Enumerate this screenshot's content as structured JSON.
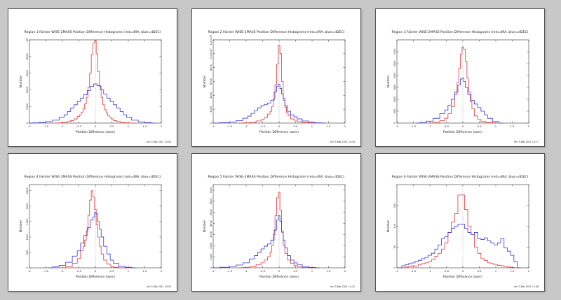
{
  "chart_data": [
    {
      "type": "line",
      "title": "Region 1 Fainter WISE-2MASS Position Difference Histograms (red=dRA, blue=dDEC)",
      "xlabel": "Position Difference (asec)",
      "ylabel": "Number",
      "footer": "tim 3-Mar-2011 10:05",
      "xlim": [
        -2,
        2
      ],
      "ylim": [
        0,
        10000
      ],
      "x_ticks": [
        "-2",
        "-1.5",
        "-1",
        "-0.5",
        "0",
        "0.5",
        "1",
        "1.5",
        "2"
      ],
      "y_ticks": [
        "0",
        "2000",
        "4000",
        "6000",
        "8000",
        "10⁴"
      ],
      "bin_width": 0.05,
      "series": [
        {
          "color": "#e8343a",
          "x": [
            -1.2,
            -1.1,
            -1.0,
            -0.9,
            -0.8,
            -0.7,
            -0.6,
            -0.5,
            -0.45,
            -0.4,
            -0.35,
            -0.3,
            -0.25,
            -0.2,
            -0.15,
            -0.1,
            -0.05,
            0,
            0.05,
            0.1,
            0.15,
            0.2,
            0.25,
            0.3,
            0.35,
            0.4,
            0.45,
            0.5,
            0.6,
            0.7,
            0.8,
            0.9,
            1.0,
            1.1,
            1.2
          ],
          "values": [
            0,
            20,
            50,
            100,
            180,
            300,
            500,
            800,
            1000,
            1300,
            1700,
            2300,
            3100,
            4300,
            6000,
            8200,
            9600,
            9900,
            8300,
            6200,
            4400,
            3100,
            2200,
            1600,
            1200,
            900,
            700,
            500,
            300,
            180,
            100,
            50,
            20,
            0,
            0
          ]
        },
        {
          "color": "#3535d8",
          "x": [
            -2,
            -1.8,
            -1.6,
            -1.4,
            -1.2,
            -1.0,
            -0.9,
            -0.8,
            -0.7,
            -0.6,
            -0.5,
            -0.4,
            -0.3,
            -0.2,
            -0.1,
            0,
            0.1,
            0.2,
            0.3,
            0.4,
            0.5,
            0.6,
            0.7,
            0.8,
            0.9,
            1.0,
            1.2,
            1.4,
            1.6,
            1.8
          ],
          "values": [
            0,
            30,
            80,
            180,
            350,
            700,
            1000,
            1400,
            1800,
            2200,
            2600,
            3000,
            3400,
            3900,
            4400,
            4700,
            4500,
            4000,
            3500,
            3000,
            2600,
            2200,
            1800,
            1400,
            1000,
            700,
            350,
            150,
            60,
            0
          ]
        }
      ]
    },
    {
      "type": "line",
      "title": "Region 2 Fainter WISE-2MASS Position Difference Histograms (red=dRA, blue=dDEC)",
      "xlabel": "Position Difference (asec)",
      "ylabel": "Number",
      "footer": "tim 3-Mar-2011 10:16",
      "xlim": [
        -2,
        2
      ],
      "ylim": [
        0,
        12000
      ],
      "x_ticks": [
        "-2",
        "-1.5",
        "-1",
        "-0.5",
        "0",
        "0.5",
        "1",
        "1.5",
        "2"
      ],
      "y_ticks": [
        "0",
        "2000",
        "4000",
        "6000",
        "8000",
        "1.0×10⁴",
        "1.2×10⁴"
      ],
      "bin_width": 0.05,
      "series": [
        {
          "color": "#e8343a",
          "x": [
            -1.2,
            -1.0,
            -0.8,
            -0.6,
            -0.5,
            -0.4,
            -0.3,
            -0.25,
            -0.2,
            -0.15,
            -0.1,
            -0.05,
            0,
            0.05,
            0.1,
            0.15,
            0.2,
            0.25,
            0.3,
            0.4,
            0.5,
            0.6,
            0.8,
            1.0,
            1.2
          ],
          "values": [
            0,
            30,
            100,
            300,
            500,
            800,
            1300,
            1700,
            2400,
            3500,
            5500,
            8500,
            11200,
            10000,
            6000,
            3600,
            2300,
            1500,
            1100,
            600,
            400,
            200,
            80,
            20,
            0
          ]
        },
        {
          "color": "#3535d8",
          "x": [
            -2,
            -1.6,
            -1.4,
            -1.2,
            -1.0,
            -0.9,
            -0.8,
            -0.7,
            -0.6,
            -0.5,
            -0.4,
            -0.3,
            -0.2,
            -0.1,
            -0.05,
            0,
            0.05,
            0.1,
            0.15,
            0.2,
            0.3,
            0.4,
            0.5,
            0.6,
            0.8,
            1.0,
            1.2,
            1.4
          ],
          "values": [
            0,
            60,
            150,
            350,
            700,
            1000,
            1400,
            1800,
            2200,
            2500,
            2700,
            2900,
            3300,
            4500,
            5300,
            5600,
            5000,
            4200,
            3300,
            2500,
            1700,
            1200,
            900,
            600,
            300,
            120,
            40,
            0
          ]
        }
      ]
    },
    {
      "type": "line",
      "title": "Region 3 Fainter WISE-2MASS Position Difference Histograms (red=dRA, blue=dDEC)",
      "xlabel": "Position Difference (asec)",
      "ylabel": "Number",
      "footer": "tim 3-Mar-2011 10:27",
      "xlim": [
        -2,
        2
      ],
      "ylim": [
        0,
        3500
      ],
      "x_ticks": [
        "-2",
        "-1.5",
        "-1",
        "-0.5",
        "0",
        "0.5",
        "1",
        "1.5",
        "2"
      ],
      "y_ticks": [
        "0",
        "500",
        "1000",
        "1500",
        "2000",
        "2500",
        "3000"
      ],
      "bin_width": 0.05,
      "series": [
        {
          "color": "#e8343a",
          "x": [
            -1.0,
            -0.8,
            -0.6,
            -0.5,
            -0.4,
            -0.3,
            -0.2,
            -0.15,
            -0.1,
            -0.05,
            0,
            0.05,
            0.1,
            0.15,
            0.2,
            0.25,
            0.3,
            0.4,
            0.5,
            0.6,
            0.8,
            1.0
          ],
          "values": [
            0,
            30,
            100,
            200,
            400,
            700,
            1200,
            1700,
            2300,
            2900,
            3200,
            3100,
            2600,
            1900,
            1300,
            900,
            600,
            300,
            150,
            60,
            20,
            0
          ]
        },
        {
          "color": "#3535d8",
          "x": [
            -1.4,
            -1.2,
            -1.0,
            -0.8,
            -0.6,
            -0.5,
            -0.4,
            -0.3,
            -0.2,
            -0.1,
            -0.05,
            0,
            0.05,
            0.1,
            0.2,
            0.3,
            0.4,
            0.5,
            0.6,
            0.7,
            0.8,
            1.0,
            1.2
          ],
          "values": [
            0,
            30,
            80,
            200,
            400,
            550,
            750,
            1000,
            1300,
            1600,
            1850,
            1900,
            1750,
            1500,
            1200,
            950,
            800,
            650,
            500,
            350,
            200,
            60,
            0
          ]
        }
      ]
    },
    {
      "type": "line",
      "title": "Region 4 Fainter WISE-2MASS Position Difference Histograms (red=dRA, blue=dDEC)",
      "xlabel": "Position Difference (asec)",
      "ylabel": "Number",
      "footer": "tim 3-Mar-2011 10:53",
      "xlim": [
        -2,
        2
      ],
      "ylim": [
        0,
        2700
      ],
      "x_ticks": [
        "-2",
        "-1.5",
        "-1",
        "-0.5",
        "0",
        "0.5",
        "1",
        "1.5",
        "2"
      ],
      "y_ticks": [
        "0",
        "500",
        "1000",
        "1500",
        "2000",
        "2500"
      ],
      "bin_width": 0.05,
      "series": [
        {
          "color": "#e8343a",
          "x": [
            -1.0,
            -0.8,
            -0.6,
            -0.5,
            -0.4,
            -0.35,
            -0.3,
            -0.25,
            -0.2,
            -0.15,
            -0.1,
            -0.05,
            0,
            0.05,
            0.1,
            0.15,
            0.2,
            0.3,
            0.4,
            0.5,
            0.6,
            0.8,
            1.0
          ],
          "values": [
            0,
            40,
            150,
            300,
            550,
            700,
            900,
            1200,
            1700,
            2200,
            2500,
            2300,
            1900,
            1400,
            1000,
            700,
            450,
            250,
            120,
            60,
            20,
            0,
            0
          ]
        },
        {
          "color": "#3535d8",
          "x": [
            -1.4,
            -1.2,
            -1.0,
            -0.8,
            -0.6,
            -0.5,
            -0.4,
            -0.3,
            -0.2,
            -0.1,
            -0.05,
            0,
            0.05,
            0.1,
            0.15,
            0.2,
            0.3,
            0.4,
            0.5,
            0.6,
            0.8,
            1.0,
            1.2
          ],
          "values": [
            0,
            30,
            80,
            180,
            380,
            550,
            800,
            1050,
            1300,
            1550,
            1650,
            1800,
            1750,
            1500,
            1250,
            1000,
            700,
            450,
            250,
            150,
            50,
            20,
            0
          ]
        }
      ]
    },
    {
      "type": "line",
      "title": "Region 5 Fainter WISE-2MASS Position Difference Histograms (red=dRA, blue=dDEC)",
      "xlabel": "Position Difference (asec)",
      "ylabel": "Number",
      "footer": "tim 3-Mar-2011 11:21",
      "xlim": [
        -2,
        2
      ],
      "ylim": [
        0,
        7500
      ],
      "x_ticks": [
        "-2",
        "-1.5",
        "-1",
        "-0.5",
        "0",
        "0.5",
        "1",
        "1.5",
        "2"
      ],
      "y_ticks": [
        "0",
        "1000",
        "2000",
        "3000",
        "4000",
        "5000",
        "6000",
        "7000"
      ],
      "bin_width": 0.05,
      "series": [
        {
          "color": "#e8343a",
          "x": [
            -1.2,
            -1.0,
            -0.8,
            -0.6,
            -0.5,
            -0.4,
            -0.3,
            -0.25,
            -0.2,
            -0.15,
            -0.1,
            -0.05,
            0,
            0.05,
            0.1,
            0.15,
            0.2,
            0.3,
            0.4,
            0.5,
            0.6,
            0.8,
            1.0
          ],
          "values": [
            0,
            30,
            100,
            300,
            450,
            700,
            1000,
            1400,
            2000,
            3000,
            4700,
            6300,
            6800,
            5200,
            3200,
            2000,
            1300,
            700,
            400,
            200,
            100,
            30,
            0
          ]
        },
        {
          "color": "#3535d8",
          "x": [
            -2,
            -1.6,
            -1.4,
            -1.2,
            -1.0,
            -0.8,
            -0.7,
            -0.6,
            -0.5,
            -0.4,
            -0.3,
            -0.2,
            -0.1,
            -0.05,
            0,
            0.05,
            0.1,
            0.15,
            0.2,
            0.3,
            0.4,
            0.5,
            0.6,
            0.8,
            1.0,
            1.2
          ],
          "values": [
            0,
            50,
            120,
            250,
            450,
            800,
            1100,
            1400,
            1700,
            1950,
            2150,
            2500,
            3400,
            4300,
            4700,
            4200,
            3300,
            2500,
            1800,
            1100,
            700,
            450,
            300,
            120,
            40,
            0
          ]
        }
      ]
    },
    {
      "type": "line",
      "title": "Region 6 Fainter WISE-2MASS Position Difference Histograms (red=dRA, blue=dDEC)",
      "xlabel": "Position Difference (asec)",
      "ylabel": "Number",
      "footer": "tim 3-Mar-2011 11:48",
      "xlim": [
        -2,
        2
      ],
      "ylim": [
        0,
        200
      ],
      "x_ticks": [
        "-2",
        "-1.5",
        "-1",
        "-0.5",
        "0",
        "0.5",
        "1",
        "1.5",
        "2"
      ],
      "y_ticks": [
        "0",
        "50",
        "100",
        "150"
      ],
      "bin_width": 0.1,
      "series": [
        {
          "color": "#e8343a",
          "x": [
            -1.9,
            -1.8,
            -1.7,
            -1.6,
            -1.5,
            -1.4,
            -1.3,
            -1.2,
            -1.1,
            -1.0,
            -0.9,
            -0.8,
            -0.7,
            -0.6,
            -0.5,
            -0.4,
            -0.3,
            -0.2,
            -0.1,
            0,
            0.1,
            0.2,
            0.3,
            0.4,
            0.5,
            0.6,
            0.7,
            0.8,
            0.9,
            1.0,
            1.1,
            1.2,
            1.3,
            1.4,
            1.5,
            1.6,
            1.7
          ],
          "values": [
            0,
            0,
            2,
            3,
            5,
            4,
            8,
            10,
            12,
            15,
            20,
            28,
            35,
            45,
            60,
            85,
            110,
            130,
            175,
            175,
            140,
            100,
            80,
            50,
            35,
            22,
            18,
            12,
            10,
            8,
            6,
            5,
            3,
            2,
            1,
            0,
            0
          ]
        },
        {
          "color": "#3535d8",
          "x": [
            -1.9,
            -1.8,
            -1.7,
            -1.6,
            -1.5,
            -1.4,
            -1.3,
            -1.2,
            -1.1,
            -1.0,
            -0.9,
            -0.8,
            -0.7,
            -0.6,
            -0.5,
            -0.4,
            -0.3,
            -0.2,
            -0.1,
            0,
            0.1,
            0.2,
            0.3,
            0.4,
            0.5,
            0.6,
            0.7,
            0.8,
            0.9,
            1.0,
            1.1,
            1.2,
            1.3,
            1.4,
            1.5,
            1.6,
            1.7
          ],
          "values": [
            0,
            5,
            8,
            10,
            12,
            15,
            18,
            22,
            25,
            30,
            35,
            45,
            55,
            70,
            75,
            85,
            95,
            100,
            105,
            105,
            95,
            85,
            80,
            85,
            70,
            68,
            72,
            65,
            60,
            55,
            60,
            70,
            48,
            40,
            30,
            15,
            0
          ]
        }
      ]
    }
  ]
}
